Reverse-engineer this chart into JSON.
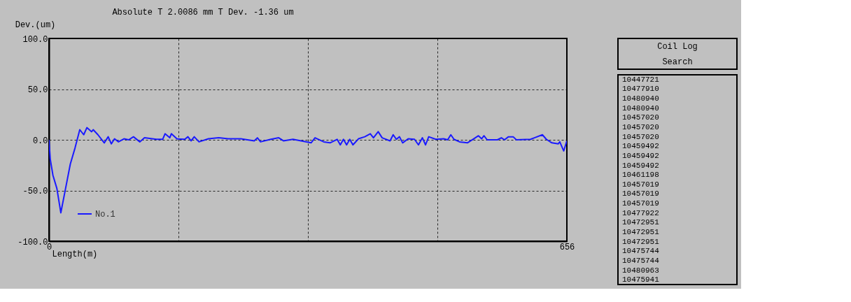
{
  "chart_data": {
    "type": "line",
    "title": "Absolute T     2.0086 mm T Dev.     -1.36 um",
    "ylabel": "Dev.(um)",
    "xlabel": "Length(m)",
    "xlim": [
      0,
      656
    ],
    "ylim": [
      -100,
      100
    ],
    "xticks": [
      0,
      {
        "value": 164,
        "label": null
      },
      {
        "value": 328,
        "label": null
      },
      {
        "value": 492,
        "label": null
      },
      656
    ],
    "yticks": [
      {
        "value": -100,
        "label": "-100.0"
      },
      {
        "value": -50,
        "label": "-50.0"
      },
      {
        "value": 0,
        "label": "0.0"
      },
      {
        "value": 50,
        "label": "50.0"
      },
      {
        "value": 100,
        "label": "100.0"
      }
    ],
    "grid": true,
    "legend": "bottom left",
    "line_style": "solid",
    "series": [
      {
        "name": "No.1",
        "color": "#1a1aff",
        "x": [
          0,
          1.6,
          5,
          10,
          15,
          21,
          27,
          33,
          39,
          44,
          48,
          54,
          56,
          62,
          70,
          75,
          79,
          83,
          88,
          95,
          101,
          107,
          115,
          121,
          136,
          144,
          147,
          153,
          155,
          162,
          172,
          176,
          180,
          184,
          190,
          202,
          215,
          227,
          243,
          260,
          264,
          268,
          281,
          291,
          297,
          309,
          332,
          337,
          348,
          356,
          365,
          369,
          373,
          377,
          381,
          385,
          392,
          400,
          407,
          411,
          417,
          422,
          432,
          436,
          440,
          444,
          448,
          455,
          463,
          468,
          473,
          477,
          481,
          490,
          500,
          505,
          509,
          513,
          520,
          530,
          538,
          544,
          548,
          551,
          555,
          568,
          573,
          577,
          582,
          588,
          592,
          610,
          625,
          630,
          637,
          645,
          647,
          652,
          656
        ],
        "values": [
          0,
          -19,
          -35,
          -48,
          -72,
          -48,
          -24,
          -8,
          10,
          5,
          12,
          8,
          10,
          5,
          -3,
          3,
          -4,
          1,
          -2,
          1,
          0,
          3,
          -2,
          2,
          0.5,
          0.5,
          6,
          2,
          6,
          1,
          0.5,
          3,
          -1,
          3,
          -2,
          1,
          2,
          1,
          1,
          -1,
          2,
          -2,
          0.5,
          2,
          -1,
          0.5,
          -3,
          2,
          -2,
          -3,
          0.5,
          -5,
          0.5,
          -5,
          0.5,
          -5,
          1,
          3,
          6,
          2,
          8,
          2,
          -1,
          5,
          0.5,
          3,
          -3,
          1,
          0.5,
          -5,
          2,
          -5,
          3,
          0.5,
          1,
          0,
          5,
          0.5,
          -2,
          -3,
          1,
          4,
          1,
          4,
          0,
          0,
          2,
          0,
          3,
          3,
          0,
          0.5,
          5,
          0.5,
          -3,
          -4,
          -2,
          -11,
          -1
        ]
      }
    ],
    "annotations": [
      "Coil Log",
      "Search",
      "10447721",
      "10477910",
      "10480940",
      "10480940",
      "10457020",
      "10457020",
      "10457020",
      "10459492",
      "10459492",
      "10459492",
      "10461198",
      "10457019",
      "10457019",
      "10457019",
      "10477922",
      "10472951",
      "10472951",
      "10472951",
      "10475744",
      "10475744",
      "10480963",
      "10475941"
    ]
  }
}
